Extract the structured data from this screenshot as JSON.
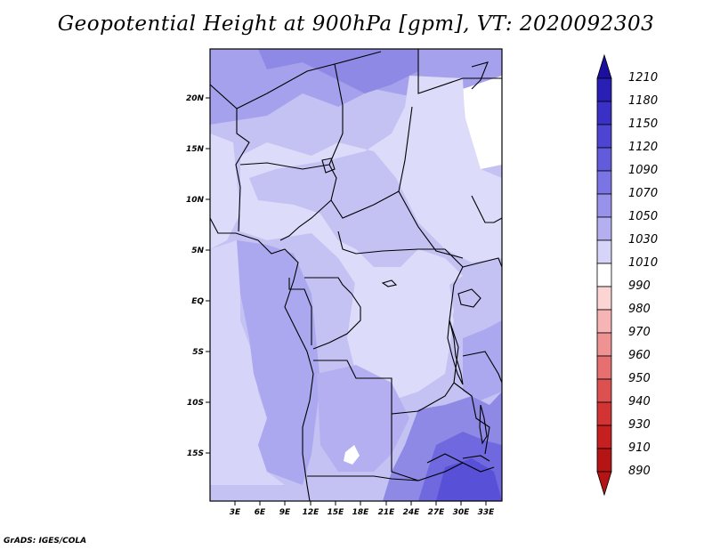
{
  "title": "Geopotential Height at 900hPa [gpm], VT: 2020092303",
  "credit": "GrADS: IGES/COLA",
  "map": {
    "lat_labels": [
      "20N",
      "15N",
      "10N",
      "5N",
      "EQ",
      "5S",
      "10S",
      "15S"
    ],
    "lon_labels": [
      "3E",
      "6E",
      "9E",
      "12E",
      "15E",
      "18E",
      "21E",
      "24E",
      "27E",
      "30E",
      "33E"
    ]
  },
  "colorbar": {
    "levels": [
      "1210",
      "1180",
      "1150",
      "1120",
      "1090",
      "1070",
      "1050",
      "1030",
      "1010",
      "990",
      "980",
      "970",
      "960",
      "950",
      "940",
      "930",
      "910",
      "890"
    ],
    "colors": [
      "#1c0fa0",
      "#2a1fb4",
      "#3a30c6",
      "#4d45d2",
      "#625bdc",
      "#7a74e4",
      "#9892ea",
      "#b4b0f0",
      "#d6d4f8",
      "#ffffff",
      "#fbd4d4",
      "#f6b4b4",
      "#ef9292",
      "#e67070",
      "#dc5050",
      "#d23434",
      "#c61f1f",
      "#b51414"
    ]
  }
}
